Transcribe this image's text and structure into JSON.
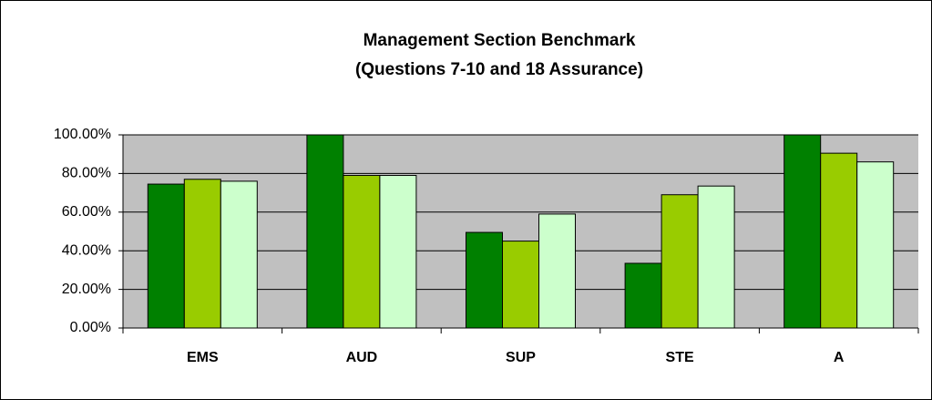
{
  "chart_data": {
    "type": "bar",
    "title": "Management Section Benchmark",
    "subtitle": "(Questions 7-10 and 18 Assurance)",
    "categories": [
      "EMS",
      "AUD",
      "SUP",
      "STE",
      "A"
    ],
    "series": [
      {
        "color": "#008000",
        "values": [
          74.5,
          100,
          49.5,
          33.5,
          100
        ]
      },
      {
        "color": "#99cc00",
        "values": [
          77,
          79,
          45,
          69,
          90.5
        ]
      },
      {
        "color": "#ccffcc",
        "values": [
          76,
          79,
          59,
          73.5,
          86
        ]
      }
    ],
    "ylim": [
      0,
      100
    ],
    "yticks": [
      {
        "value": 0,
        "label": "0.00%"
      },
      {
        "value": 20,
        "label": "20.00%"
      },
      {
        "value": 40,
        "label": "40.00%"
      },
      {
        "value": 60,
        "label": "60.00%"
      },
      {
        "value": 80,
        "label": "80.00%"
      },
      {
        "value": 100,
        "label": "100.00%"
      }
    ],
    "grid": true,
    "plot_background": "#c0c0c0"
  }
}
